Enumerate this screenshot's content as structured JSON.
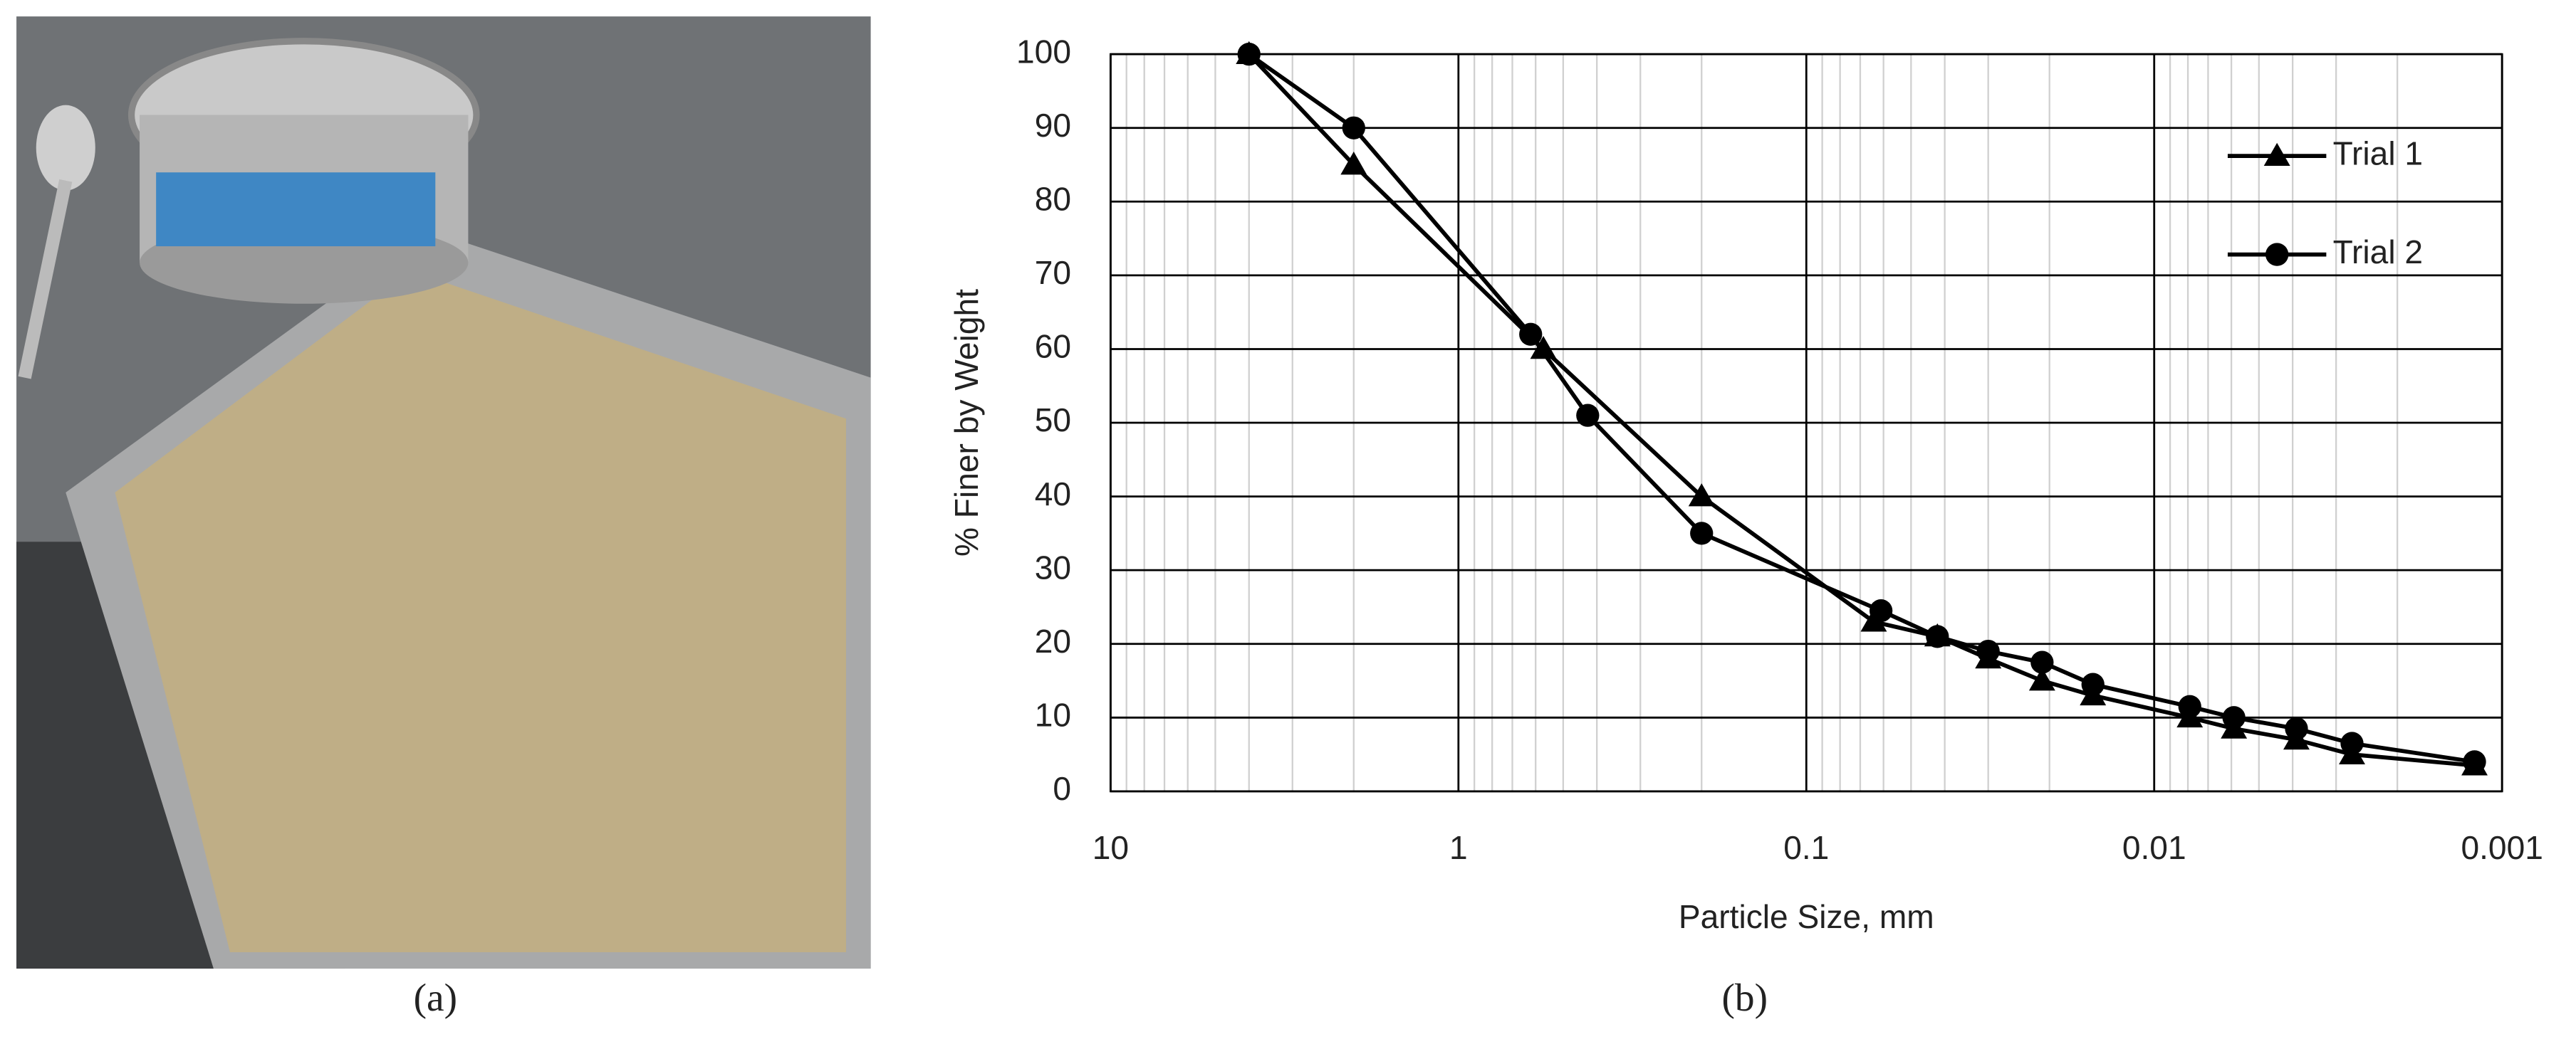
{
  "chart_data": {
    "type": "line",
    "x_label": "Particle Size, mm",
    "y_label": "% Finer by Weight",
    "xlim": [
      10,
      0.001
    ],
    "xticks": [
      10,
      1,
      0.1,
      0.01,
      0.001
    ],
    "xlog": true,
    "ylim": [
      0,
      100
    ],
    "yticks": [
      0,
      10,
      20,
      30,
      40,
      50,
      60,
      70,
      80,
      90,
      100
    ],
    "grid": true,
    "legend": "upper right",
    "series": [
      {
        "name": "Trial 1",
        "color": "#000000",
        "marker": "triangle",
        "x": [
          4.0,
          2.0,
          0.57,
          0.2,
          0.064,
          0.042,
          0.03,
          0.021,
          0.015,
          0.0079,
          0.0059,
          0.0039,
          0.0027,
          0.0012
        ],
        "values": [
          100,
          85,
          60,
          40,
          23,
          21,
          18,
          15,
          13,
          10,
          8.5,
          7,
          5,
          3.5
        ]
      },
      {
        "name": "Trial 2",
        "color": "#000000",
        "marker": "circle",
        "x": [
          4.0,
          2.0,
          0.62,
          0.425,
          0.2,
          0.061,
          0.042,
          0.03,
          0.021,
          0.015,
          0.0079,
          0.0059,
          0.0039,
          0.0027,
          0.0012
        ],
        "values": [
          100,
          90,
          62,
          51,
          35,
          24.5,
          21,
          19,
          17.5,
          14.5,
          11.5,
          10,
          8.5,
          6.5,
          4
        ]
      }
    ]
  },
  "captions": [
    "(a)",
    "(b)"
  ]
}
